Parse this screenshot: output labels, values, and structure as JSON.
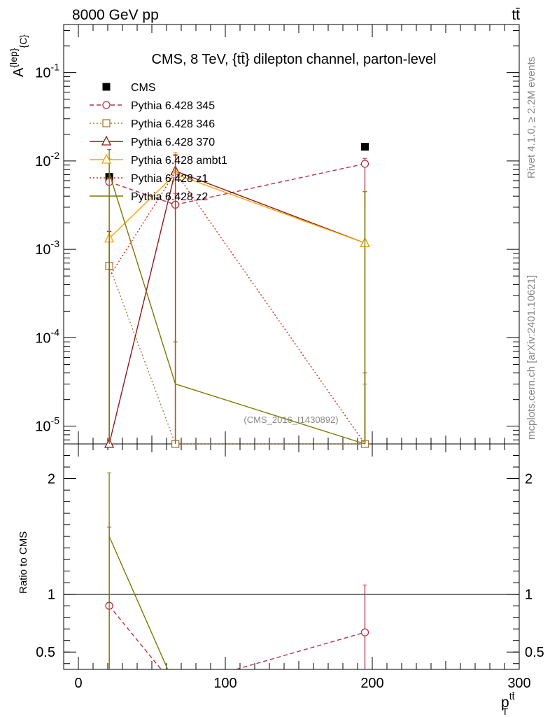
{
  "header": {
    "left": "8000 GeV pp",
    "right": "tt̄"
  },
  "side": {
    "rivet": "Rivet 4.1.0, ≥ 2.2M events",
    "mcplots": "mcplots.cern.ch [arXiv:2401.10621]"
  },
  "watermark": "(CMS_2016_I1430892)",
  "colors": {
    "cms": "#000000",
    "p345": "#b52f49",
    "p346": "#a37a3c",
    "p370": "#8b1a1a",
    "ambt1": "#f5a500",
    "z1": "#d42a1a",
    "z2": "#7a7a00"
  },
  "chart_data": [
    {
      "type": "line",
      "title": "CMS, 8 TeV, {tt̄} dilepton channel, parton-level",
      "ylabel": "A^{lep}_{C}",
      "yscale": "log",
      "xlim": [
        -10,
        300
      ],
      "ylim": [
        6.3e-06,
        0.35
      ],
      "yticks": [
        {
          "v": 1e-05,
          "label": "10^-5"
        },
        {
          "v": 0.0001,
          "label": "10^-4"
        },
        {
          "v": 0.001,
          "label": "10^-3"
        },
        {
          "v": 0.01,
          "label": "10^-2"
        },
        {
          "v": 0.1,
          "label": "10^-1"
        }
      ],
      "legend_position": "top-left",
      "series": [
        {
          "key": "cms",
          "name": "CMS",
          "style": "data",
          "marker": "square-filled",
          "x": [
            21,
            66,
            195
          ],
          "y": [
            0.0066,
            6.3e-06,
            0.0145
          ]
        },
        {
          "key": "p345",
          "name": "Pythia 6.428 345",
          "style": "dashed",
          "marker": "circle",
          "x": [
            21,
            66,
            195
          ],
          "y": [
            0.0058,
            0.0032,
            0.0093
          ],
          "err_lo": [
            6.3e-06,
            0.0024,
            0.0029
          ],
          "err_hi": [
            0.0105,
            0.0043,
            0.0107
          ]
        },
        {
          "key": "p346",
          "name": "Pythia 6.428 346",
          "style": "dotted",
          "marker": "square",
          "x": [
            21,
            66,
            195
          ],
          "y": [
            0.00065,
            6.3e-06,
            6.3e-06
          ],
          "err_lo": [
            6.3e-06,
            6.3e-06,
            6.3e-06
          ],
          "err_hi": [
            0.0016,
            9e-05,
            3e-05
          ]
        },
        {
          "key": "p370",
          "name": "Pythia 6.428 370",
          "style": "solid",
          "marker": "triangle",
          "x": [
            21,
            66,
            195
          ],
          "y": [
            6.3e-06,
            0.0077,
            0.00118
          ],
          "err_lo": [
            6.3e-06,
            6.3e-06,
            6.3e-06
          ],
          "err_hi": [
            0.0016,
            0.0115,
            0.0045
          ]
        },
        {
          "key": "ambt1",
          "name": "Pythia 6.428 ambt1",
          "style": "solid",
          "marker": "triangle",
          "x": [
            21,
            66,
            195
          ],
          "y": [
            0.00133,
            0.0071,
            0.00118
          ],
          "err_lo": [
            6.3e-06,
            6.3e-06,
            6.3e-06
          ],
          "err_hi": [
            0.0105,
            0.0125,
            0.0045
          ]
        },
        {
          "key": "z1",
          "name": "Pythia 6.428 z1",
          "style": "dotted",
          "marker": "none",
          "x": [
            21,
            66,
            195
          ],
          "y": [
            0.00049,
            0.0075,
            6.3e-06
          ],
          "err_lo": [
            6.3e-06,
            6.3e-06,
            6.3e-06
          ],
          "err_hi": [
            0.0016,
            0.0118,
            4e-05
          ]
        },
        {
          "key": "z2",
          "name": "Pythia 6.428 z2",
          "style": "solid",
          "marker": "none",
          "x": [
            21,
            66,
            195
          ],
          "y": [
            0.0073,
            3e-05,
            6.3e-06
          ],
          "err_lo": [
            6.3e-06,
            6.3e-06,
            6.3e-06
          ],
          "err_hi": [
            0.0135,
            9e-05,
            0.0045
          ]
        }
      ]
    },
    {
      "type": "line",
      "title": "",
      "ylabel": "Ratio to CMS",
      "yscale": "linear",
      "xlim": [
        -10,
        300
      ],
      "ylim": [
        0.35,
        2.3
      ],
      "yticks": [
        {
          "v": 0.5,
          "label": "0.5"
        },
        {
          "v": 1,
          "label": "1"
        },
        {
          "v": 2,
          "label": "2"
        }
      ],
      "xticks": [
        {
          "v": 0,
          "label": "0"
        },
        {
          "v": 100,
          "label": "100"
        },
        {
          "v": 200,
          "label": "200"
        },
        {
          "v": 300,
          "label": "300"
        }
      ],
      "xlabel": "p_T^{tt̄}",
      "reference_line": 1,
      "series": [
        {
          "key": "p345",
          "style": "dashed",
          "marker": "circle",
          "x": [
            21,
            66,
            195
          ],
          "y": [
            0.9,
            0.2,
            0.67
          ],
          "err_lo": [
            0.35,
            null,
            0.35
          ],
          "err_hi": [
            1.58,
            null,
            1.08
          ]
        },
        {
          "key": "z2",
          "style": "solid",
          "marker": "none",
          "x": [
            21,
            66
          ],
          "y": [
            1.5,
            0.2
          ],
          "err_lo": [
            0.35,
            null
          ],
          "err_hi": [
            2.05,
            null
          ]
        }
      ]
    }
  ]
}
